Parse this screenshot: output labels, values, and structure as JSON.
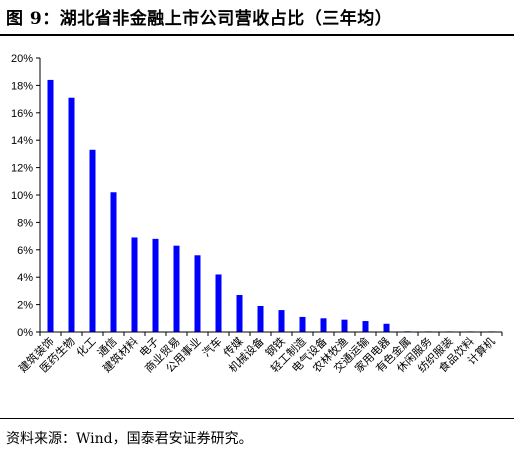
{
  "figure": {
    "title": "图 9：湖北省非金融上市公司营收占比（三年均）",
    "source": "资料来源：Wind，国泰君安证券研究。"
  },
  "chart_data": {
    "type": "bar",
    "categories": [
      "建筑装饰",
      "医药生物",
      "化工",
      "通信",
      "建筑材料",
      "电子",
      "商业贸易",
      "公用事业",
      "汽车",
      "传媒",
      "机械设备",
      "钢铁",
      "轻工制造",
      "电气设备",
      "农林牧渔",
      "交通运输",
      "家用电器",
      "有色金属",
      "休闲服务",
      "纺织服装",
      "食品饮料",
      "计算机"
    ],
    "values": [
      18.4,
      17.1,
      13.3,
      10.2,
      6.9,
      6.8,
      6.3,
      5.6,
      4.2,
      2.7,
      1.9,
      1.6,
      1.1,
      1.0,
      0.9,
      0.8,
      0.6,
      0.05,
      0.03,
      0.03,
      0.02,
      0.01
    ],
    "y_ticks": [
      "0%",
      "2%",
      "4%",
      "6%",
      "8%",
      "10%",
      "12%",
      "14%",
      "16%",
      "18%",
      "20%"
    ],
    "ylim": [
      0,
      20
    ],
    "bar_color": "#0000FF",
    "grid": false,
    "legend": "none"
  }
}
